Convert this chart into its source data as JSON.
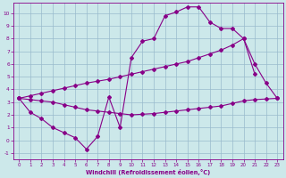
{
  "xlabel": "Windchill (Refroidissement éolien,°C)",
  "xlim": [
    -0.5,
    23.5
  ],
  "ylim": [
    -1.5,
    10.8
  ],
  "xticks": [
    0,
    1,
    2,
    3,
    4,
    5,
    6,
    7,
    8,
    9,
    10,
    11,
    12,
    13,
    14,
    15,
    16,
    17,
    18,
    19,
    20,
    21,
    22,
    23
  ],
  "yticks": [
    -1,
    0,
    1,
    2,
    3,
    4,
    5,
    6,
    7,
    8,
    9,
    10
  ],
  "line_color": "#880088",
  "bg_color": "#cce8ea",
  "grid_color": "#99bbcc",
  "curve_zigzag": {
    "x": [
      0,
      1,
      2,
      3,
      4,
      5,
      6,
      7,
      8,
      9,
      10,
      11,
      12,
      13,
      14,
      15,
      16,
      17,
      18,
      19,
      20,
      21
    ],
    "y": [
      3.3,
      2.2,
      1.7,
      1.0,
      0.6,
      0.2,
      -0.7,
      0.3,
      3.4,
      1.0,
      6.5,
      7.8,
      8.0,
      9.8,
      10.1,
      10.5,
      10.5,
      9.3,
      8.8,
      8.8,
      8.0,
      5.2
    ]
  },
  "curve_upper": {
    "x": [
      0,
      1,
      2,
      3,
      4,
      5,
      6,
      7,
      8,
      9,
      10,
      11,
      12,
      13,
      14,
      15,
      16,
      17,
      18,
      19,
      20,
      21,
      22,
      23
    ],
    "y": [
      3.3,
      3.5,
      3.7,
      3.9,
      4.1,
      4.3,
      4.5,
      4.65,
      4.8,
      5.0,
      5.2,
      5.4,
      5.6,
      5.8,
      6.0,
      6.2,
      6.5,
      6.8,
      7.1,
      7.5,
      8.0,
      6.0,
      4.5,
      3.3
    ]
  },
  "curve_lower": {
    "x": [
      0,
      1,
      2,
      3,
      4,
      5,
      6,
      7,
      8,
      9,
      10,
      11,
      12,
      13,
      14,
      15,
      16,
      17,
      18,
      19,
      20,
      21,
      22,
      23
    ],
    "y": [
      3.3,
      3.2,
      3.1,
      3.0,
      2.8,
      2.6,
      2.4,
      2.3,
      2.2,
      2.1,
      2.0,
      2.05,
      2.1,
      2.2,
      2.3,
      2.4,
      2.5,
      2.6,
      2.7,
      2.9,
      3.1,
      3.2,
      3.25,
      3.3
    ]
  }
}
